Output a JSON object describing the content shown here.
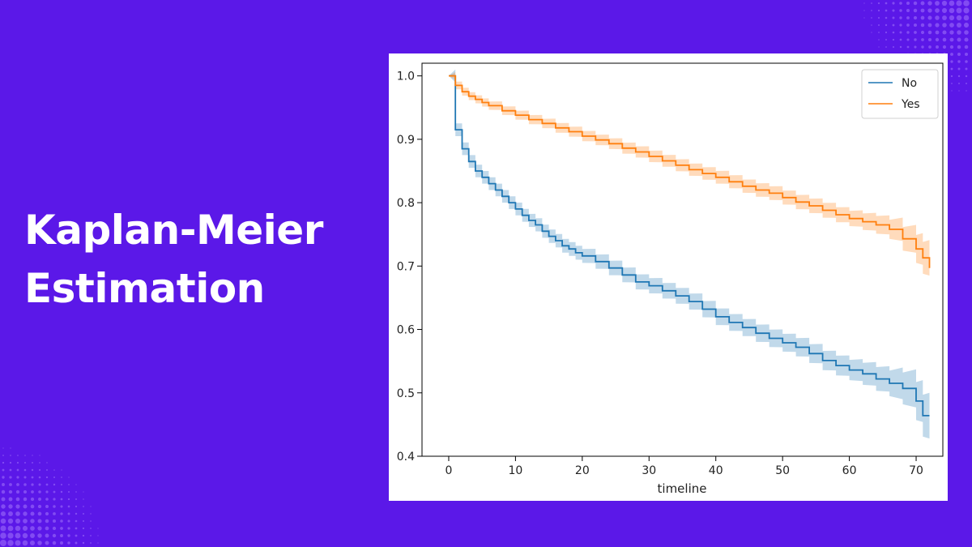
{
  "headline": {
    "line1": "Kaplan-Meier",
    "line2": "Estimation"
  },
  "colors": {
    "background": "#5b18e8",
    "no_series": "#1f77b4",
    "yes_series": "#ff7f0e"
  },
  "chart_data": {
    "type": "line",
    "step": true,
    "confidence_bands": true,
    "xlabel": "timeline",
    "ylabel": "",
    "xlim": [
      -4,
      74
    ],
    "ylim": [
      0.4,
      1.02
    ],
    "xticks": [
      0,
      10,
      20,
      30,
      40,
      50,
      60,
      70
    ],
    "yticks": [
      0.4,
      0.5,
      0.6,
      0.7,
      0.8,
      0.9,
      1.0
    ],
    "xtick_labels": [
      "0",
      "10",
      "20",
      "30",
      "40",
      "50",
      "60",
      "70"
    ],
    "ytick_labels": [
      "0.4",
      "0.5",
      "0.6",
      "0.7",
      "0.8",
      "0.9",
      "1.0"
    ],
    "legend_position": "top-right",
    "grid": false,
    "series": [
      {
        "name": "No",
        "color": "#1f77b4",
        "points": [
          [
            0,
            1.0
          ],
          [
            1,
            0.915
          ],
          [
            2,
            0.885
          ],
          [
            3,
            0.865
          ],
          [
            4,
            0.85
          ],
          [
            5,
            0.84
          ],
          [
            6,
            0.83
          ],
          [
            7,
            0.82
          ],
          [
            8,
            0.81
          ],
          [
            9,
            0.8
          ],
          [
            10,
            0.79
          ],
          [
            11,
            0.78
          ],
          [
            12,
            0.772
          ],
          [
            13,
            0.765
          ],
          [
            14,
            0.755
          ],
          [
            15,
            0.747
          ],
          [
            16,
            0.74
          ],
          [
            17,
            0.732
          ],
          [
            18,
            0.727
          ],
          [
            19,
            0.721
          ],
          [
            20,
            0.716
          ],
          [
            22,
            0.707
          ],
          [
            24,
            0.697
          ],
          [
            26,
            0.686
          ],
          [
            28,
            0.675
          ],
          [
            30,
            0.669
          ],
          [
            32,
            0.661
          ],
          [
            34,
            0.653
          ],
          [
            36,
            0.644
          ],
          [
            38,
            0.632
          ],
          [
            40,
            0.62
          ],
          [
            42,
            0.611
          ],
          [
            44,
            0.603
          ],
          [
            46,
            0.594
          ],
          [
            48,
            0.586
          ],
          [
            50,
            0.579
          ],
          [
            52,
            0.572
          ],
          [
            54,
            0.562
          ],
          [
            56,
            0.551
          ],
          [
            58,
            0.543
          ],
          [
            60,
            0.536
          ],
          [
            62,
            0.53
          ],
          [
            64,
            0.522
          ],
          [
            66,
            0.515
          ],
          [
            68,
            0.507
          ],
          [
            70,
            0.487
          ],
          [
            71,
            0.464
          ],
          [
            72,
            0.464
          ]
        ],
        "band_halfwidth": [
          [
            0,
            0.0
          ],
          [
            1,
            0.01
          ],
          [
            10,
            0.01
          ],
          [
            30,
            0.012
          ],
          [
            50,
            0.014
          ],
          [
            60,
            0.016
          ],
          [
            66,
            0.02
          ],
          [
            70,
            0.03
          ],
          [
            72,
            0.036
          ]
        ]
      },
      {
        "name": "Yes",
        "color": "#ff7f0e",
        "points": [
          [
            0,
            1.0
          ],
          [
            1,
            0.985
          ],
          [
            2,
            0.975
          ],
          [
            3,
            0.968
          ],
          [
            4,
            0.963
          ],
          [
            5,
            0.958
          ],
          [
            6,
            0.953
          ],
          [
            8,
            0.945
          ],
          [
            10,
            0.938
          ],
          [
            12,
            0.931
          ],
          [
            14,
            0.925
          ],
          [
            16,
            0.918
          ],
          [
            18,
            0.912
          ],
          [
            20,
            0.905
          ],
          [
            22,
            0.899
          ],
          [
            24,
            0.893
          ],
          [
            26,
            0.886
          ],
          [
            28,
            0.88
          ],
          [
            30,
            0.873
          ],
          [
            32,
            0.866
          ],
          [
            34,
            0.859
          ],
          [
            36,
            0.852
          ],
          [
            38,
            0.846
          ],
          [
            40,
            0.84
          ],
          [
            42,
            0.833
          ],
          [
            44,
            0.826
          ],
          [
            46,
            0.82
          ],
          [
            48,
            0.815
          ],
          [
            50,
            0.808
          ],
          [
            52,
            0.801
          ],
          [
            54,
            0.795
          ],
          [
            56,
            0.788
          ],
          [
            58,
            0.781
          ],
          [
            60,
            0.775
          ],
          [
            62,
            0.77
          ],
          [
            64,
            0.765
          ],
          [
            66,
            0.758
          ],
          [
            68,
            0.743
          ],
          [
            70,
            0.727
          ],
          [
            71,
            0.713
          ],
          [
            72,
            0.697
          ]
        ],
        "band_halfwidth": [
          [
            0,
            0.0
          ],
          [
            1,
            0.006
          ],
          [
            20,
            0.008
          ],
          [
            40,
            0.01
          ],
          [
            60,
            0.012
          ],
          [
            66,
            0.015
          ],
          [
            70,
            0.022
          ],
          [
            72,
            0.028
          ]
        ]
      }
    ]
  }
}
